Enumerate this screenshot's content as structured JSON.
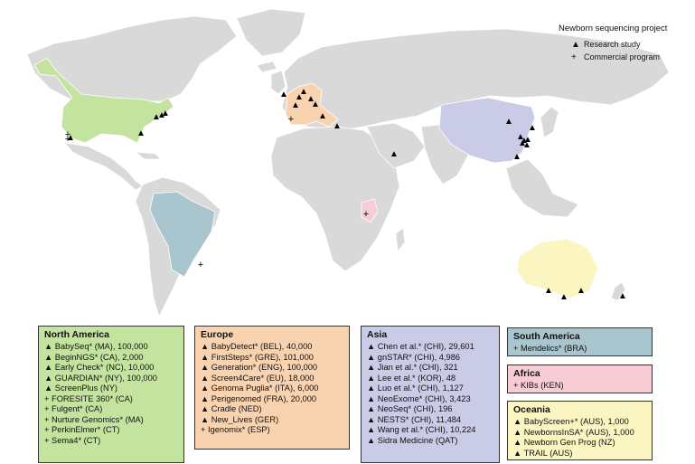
{
  "legend": {
    "title": "Newborn sequencing project",
    "items": [
      {
        "symbol": "▲",
        "label": "Research study"
      },
      {
        "symbol": "+",
        "label": "Commercial program"
      }
    ]
  },
  "colors": {
    "north_america": "#c3e39f",
    "europe": "#f9d3b0",
    "asia": "#cacbe6",
    "south_america": "#a9c5cd",
    "africa": "#f7ccd5",
    "oceania": "#fbf5c2",
    "land": "#d9d9d9"
  },
  "regions": {
    "north_america": {
      "title": "North America",
      "items": [
        "▲ BabySeq* (MA), 100,000",
        "▲ BeginNGS* (CA), 2,000",
        "▲ Early Check* (NC), 10,000",
        "▲ GUARDIAN* (NY), 100,000",
        "▲ ScreenPlus (NY)",
        "+ FORESITE 360* (CA)",
        "+ Fulgent* (CA)",
        "+ Nurture Genomics* (MA)",
        "+ PerkinElmer* (CT)",
        "+ Sema4* (CT)"
      ]
    },
    "europe": {
      "title": "Europe",
      "items": [
        "▲ BabyDetect* (BEL), 40,000",
        "▲ FirstSteps* (GRE), 101,000",
        "▲ Generation* (ENG), 100,000",
        "▲ Screen4Care* (EU), 18,000",
        "▲ Genoma Puglia* (ITA), 6,000",
        "▲ Perigenomed (FRA), 20,000",
        "▲ Cradle (NED)",
        "▲ New_Lives (GER)",
        "+ Igenomix* (ESP)"
      ]
    },
    "asia": {
      "title": "Asia",
      "items": [
        "▲ Chen et al.* (CHI), 29,601",
        "▲ gnSTAR* (CHI), 4,986",
        "▲ Jian et al.* (CHI), 321",
        "▲ Lee et al.* (KOR), 48",
        "▲ Luo et al.* (CHI), 1,127",
        "▲ NeoExome* (CHI), 3,423",
        "▲ NeoSeq* (CHI), 196",
        "▲ NESTS* (CHI), 11,484",
        "▲ Wang et al.* (CHI), 10,224",
        "▲ Sidra Medicine (QAT)"
      ]
    },
    "south_america": {
      "title": "South America",
      "items": [
        "+ Mendelics* (BRA)"
      ]
    },
    "africa": {
      "title": "Africa",
      "items": [
        "+ KIBs (KEN)"
      ]
    },
    "oceania": {
      "title": "Oceania",
      "items": [
        "▲ BabyScreen+* (AUS), 1,000",
        "▲ NewbornsInSA* (AUS), 1,000",
        "▲ Newborn Gen Prog (NZ)",
        "▲ TRAIL (AUS)"
      ]
    }
  }
}
